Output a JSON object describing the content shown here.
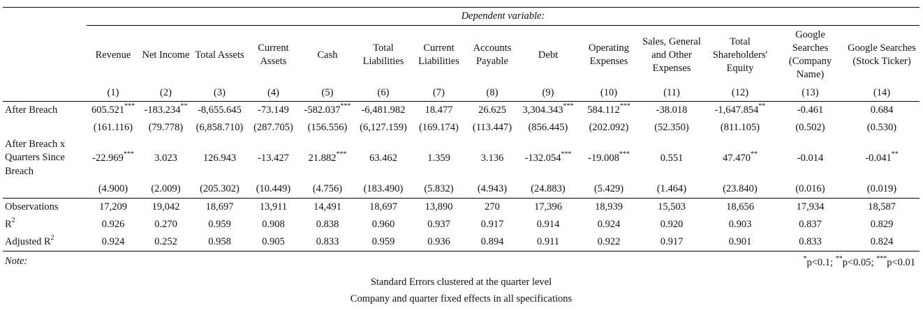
{
  "table": {
    "dependent_variable_label": "Dependent variable:",
    "columns": [
      {
        "header": "Revenue",
        "number": "(1)"
      },
      {
        "header": "Net Income",
        "number": "(2)"
      },
      {
        "header": "Total Assets",
        "number": "(3)"
      },
      {
        "header": "Current Assets",
        "number": "(4)"
      },
      {
        "header": "Cash",
        "number": "(5)"
      },
      {
        "header": "Total Liabilities",
        "number": "(6)"
      },
      {
        "header": "Current Liabilities",
        "number": "(7)"
      },
      {
        "header": "Accounts Payable",
        "number": "(8)"
      },
      {
        "header": "Debt",
        "number": "(9)"
      },
      {
        "header": "Operating Expenses",
        "number": "(10)"
      },
      {
        "header": "Sales, General and Other Expenses",
        "number": "(11)"
      },
      {
        "header": "Total Shareholders' Equity",
        "number": "(12)"
      },
      {
        "header": "Google Searches (Company Name)",
        "number": "(13)"
      },
      {
        "header": "Google Searches (Stock Ticker)",
        "number": "(14)"
      }
    ],
    "rows": [
      {
        "label": "After Breach",
        "coef": [
          {
            "v": "605.521",
            "s": "***"
          },
          {
            "v": "-183.234",
            "s": "**"
          },
          {
            "v": "-8,655.645",
            "s": ""
          },
          {
            "v": "-73.149",
            "s": ""
          },
          {
            "v": "-582.037",
            "s": "***"
          },
          {
            "v": "-6,481.982",
            "s": ""
          },
          {
            "v": "18.477",
            "s": ""
          },
          {
            "v": "26.625",
            "s": ""
          },
          {
            "v": "3,304.343",
            "s": "***"
          },
          {
            "v": "584.112",
            "s": "***"
          },
          {
            "v": "-38.018",
            "s": ""
          },
          {
            "v": "-1,647.854",
            "s": "**"
          },
          {
            "v": "-0.461",
            "s": ""
          },
          {
            "v": "0.684",
            "s": ""
          }
        ],
        "se": [
          "(161.116)",
          "(79.778)",
          "(6,858.710)",
          "(287.705)",
          "(156.556)",
          "(6,127.159)",
          "(169.174)",
          "(113.447)",
          "(856.445)",
          "(202.092)",
          "(52.350)",
          "(811.105)",
          "(0.502)",
          "(0.530)"
        ]
      },
      {
        "label": "After Breach x Quarters Since Breach",
        "coef": [
          {
            "v": "-22.969",
            "s": "***"
          },
          {
            "v": "3.023",
            "s": ""
          },
          {
            "v": "126.943",
            "s": ""
          },
          {
            "v": "-13.427",
            "s": ""
          },
          {
            "v": "21.882",
            "s": "***"
          },
          {
            "v": "63.462",
            "s": ""
          },
          {
            "v": "1.359",
            "s": ""
          },
          {
            "v": "3.136",
            "s": ""
          },
          {
            "v": "-132.054",
            "s": "***"
          },
          {
            "v": "-19.008",
            "s": "***"
          },
          {
            "v": "0.551",
            "s": ""
          },
          {
            "v": "47.470",
            "s": "**"
          },
          {
            "v": "-0.014",
            "s": ""
          },
          {
            "v": "-0.041",
            "s": "**"
          }
        ],
        "se": [
          "(4.900)",
          "(2.009)",
          "(205.302)",
          "(10.449)",
          "(4.756)",
          "(183.490)",
          "(5.832)",
          "(4.943)",
          "(24.883)",
          "(5.429)",
          "(1.464)",
          "(23.840)",
          "(0.016)",
          "(0.019)"
        ]
      }
    ],
    "stats": [
      {
        "label": "Observations",
        "sup": "",
        "values": [
          "17,209",
          "19,042",
          "18,697",
          "13,911",
          "14,491",
          "18,697",
          "13,890",
          "270",
          "17,396",
          "18,939",
          "15,503",
          "18,656",
          "17,934",
          "18,587"
        ]
      },
      {
        "label": "R",
        "sup": "2",
        "values": [
          "0.926",
          "0.270",
          "0.959",
          "0.908",
          "0.838",
          "0.960",
          "0.937",
          "0.917",
          "0.914",
          "0.924",
          "0.920",
          "0.903",
          "0.837",
          "0.829"
        ]
      },
      {
        "label": "Adjusted R",
        "sup": "2",
        "values": [
          "0.924",
          "0.252",
          "0.958",
          "0.905",
          "0.833",
          "0.959",
          "0.936",
          "0.894",
          "0.911",
          "0.922",
          "0.917",
          "0.901",
          "0.833",
          "0.824"
        ]
      }
    ],
    "note": {
      "label": "Note:",
      "significance": [
        {
          "sup": "*",
          "text": "p<0.1; "
        },
        {
          "sup": "**",
          "text": "p<0.05; "
        },
        {
          "sup": "***",
          "text": "p<0.01"
        }
      ],
      "lines": [
        "Standard Errors clustered at the quarter level",
        "Company and quarter fixed effects in all specifications"
      ]
    }
  }
}
